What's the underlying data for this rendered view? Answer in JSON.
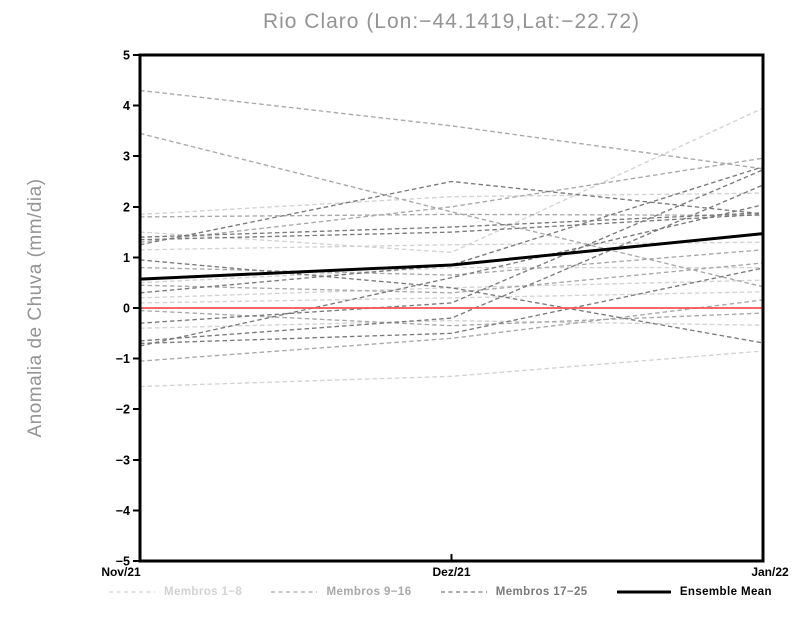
{
  "chart_data": {
    "type": "line",
    "title": "Rio Claro (Lon:−44.1419,Lat:−22.72)",
    "ylabel": "Anomalia de Chuva (mm/dia)",
    "xlabel": "",
    "x_categories": [
      "Nov/21",
      "Dez/21",
      "Jan/22"
    ],
    "ylim": [
      -5,
      5
    ],
    "y_tick_labels": [
      "5",
      "4",
      "3",
      "2",
      "1",
      "0",
      "−1",
      "−2",
      "−3",
      "−4",
      "−5"
    ],
    "grid": false,
    "legend_position": "bottom",
    "frame_color": "#000000",
    "zero_line": {
      "name": "zero-reference",
      "color": "#f4524d",
      "values": [
        0,
        0,
        0
      ]
    },
    "groups": [
      {
        "name": "Membros 1−8",
        "color": "#d2d2d2",
        "line_style": "dashed",
        "members": [
          [
            1.85,
            2.2,
            2.27
          ],
          [
            1.5,
            1.1,
            3.95
          ],
          [
            1.15,
            1.25,
            1.3
          ],
          [
            0.5,
            0.8,
            0.8
          ],
          [
            0.2,
            0.4,
            0.55
          ],
          [
            0.1,
            0.2,
            0.32
          ],
          [
            -0.4,
            -0.25,
            -0.34
          ],
          [
            -1.55,
            -1.35,
            -0.85
          ]
        ]
      },
      {
        "name": "Membros 9−16",
        "color": "#a8a8a8",
        "line_style": "dashed",
        "members": [
          [
            4.3,
            3.6,
            2.75
          ],
          [
            3.45,
            1.9,
            0.42
          ],
          [
            1.8,
            1.85,
            1.83
          ],
          [
            1.3,
            2.0,
            2.96
          ],
          [
            0.8,
            0.65,
            1.15
          ],
          [
            0.45,
            0.3,
            0.89
          ],
          [
            -0.05,
            -0.35,
            -0.1
          ],
          [
            -1.05,
            -0.6,
            0.16
          ]
        ]
      },
      {
        "name": "Membros 17−25",
        "color": "#7a7a7a",
        "line_style": "dashed",
        "members": [
          [
            1.4,
            1.6,
            1.88
          ],
          [
            1.35,
            1.5,
            1.85
          ],
          [
            1.25,
            2.5,
            1.86
          ],
          [
            0.95,
            0.4,
            -0.69
          ],
          [
            0.3,
            0.85,
            2.79
          ],
          [
            -0.3,
            0.1,
            2.73
          ],
          [
            -0.65,
            -0.2,
            2.43
          ],
          [
            -0.7,
            -0.5,
            0.79
          ],
          [
            -0.75,
            0.6,
            2.04
          ]
        ]
      }
    ],
    "mean_series": {
      "name": "Ensemble Mean",
      "color": "#000000",
      "line_style": "solid",
      "values": [
        0.57,
        0.85,
        1.47
      ]
    }
  },
  "legend": {
    "items": [
      {
        "label": "Membros 1−8",
        "color": "#d2d2d2",
        "style": "dashed"
      },
      {
        "label": "Membros 9−16",
        "color": "#a8a8a8",
        "style": "dashed"
      },
      {
        "label": "Membros 17−25",
        "color": "#7a7a7a",
        "style": "dashed"
      },
      {
        "label": "Ensemble Mean",
        "color": "#000000",
        "style": "solid"
      }
    ]
  }
}
